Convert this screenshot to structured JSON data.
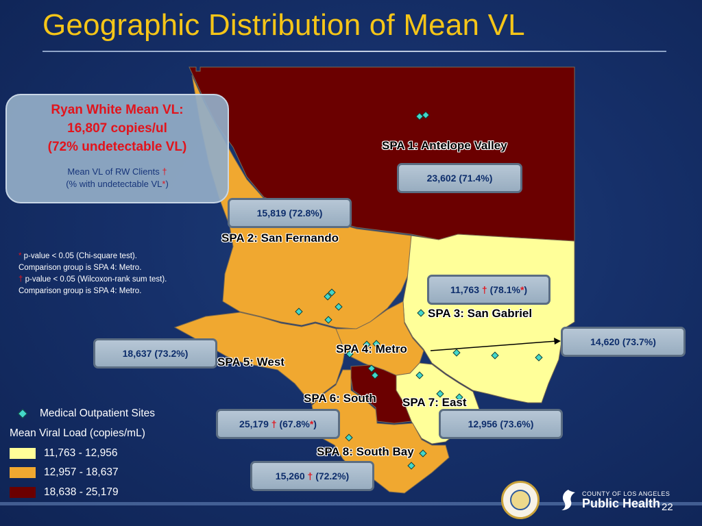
{
  "title": "Geographic Distribution of Mean VL",
  "rw_box": {
    "line1": "Ryan White Mean VL:",
    "line2": "16,807 copies/ul",
    "line3": "(72% undetectable VL)",
    "sub1": "Mean VL of RW Clients",
    "sub1_mark": "†",
    "sub2a": "(% with undetectable VL",
    "sub2_mark": "*",
    "sub2b": ")"
  },
  "notes": {
    "star": "*",
    "line1": " p-value < 0.05 (Chi-square test).",
    "line2": "Comparison group is SPA 4: Metro.",
    "dagger": "†",
    "line3": " p-value < 0.05 (Wilcoxon-rank sum test).",
    "line4": "Comparison group is SPA 4: Metro."
  },
  "regions": {
    "spa1": {
      "label": "SPA 1:  Antelope Valley",
      "value": "23,602 (71.4%)"
    },
    "spa2": {
      "label": "SPA 2:  San Fernando",
      "value": "15,819  (72.8%)"
    },
    "spa3": {
      "label": "SPA 3:  San Gabriel",
      "value_a": "11,763",
      "dagger": "†",
      "value_b": "(78.1%",
      "star": "*",
      "value_c": ")"
    },
    "spa4": {
      "label": "SPA 4:  Metro",
      "value": "14,620 (73.7%)"
    },
    "spa5": {
      "label": "SPA 5:  West",
      "value": "18,637 (73.2%)"
    },
    "spa6": {
      "label": "SPA 6:  South",
      "value_a": "25,179",
      "dagger": "†",
      "value_b": "(67.8%",
      "star": "*",
      "value_c": ")"
    },
    "spa7": {
      "label": "SPA 7:  East",
      "value": "12,956 (73.6%)"
    },
    "spa8": {
      "label": "SPA 8:  South Bay",
      "value_a": "15,260",
      "dagger": "†",
      "value_b": "(72.2%)"
    }
  },
  "legend": {
    "sites_label": "Medical Outpatient Sites",
    "title": "Mean Viral Load (copies/mL)",
    "ranges": [
      {
        "label": "11,763 - 12,956",
        "color": "#ffff99"
      },
      {
        "label": "12,957 - 18,637",
        "color": "#f0a830"
      },
      {
        "label": "18,638 - 25,179",
        "color": "#6b0000"
      }
    ]
  },
  "colors": {
    "title": "#f5c518",
    "low": "#ffff99",
    "mid": "#f0a830",
    "high": "#6b0000"
  },
  "footer": {
    "page": "22",
    "logo_small": "COUNTY OF LOS ANGELES",
    "logo_big": "Public Health"
  }
}
